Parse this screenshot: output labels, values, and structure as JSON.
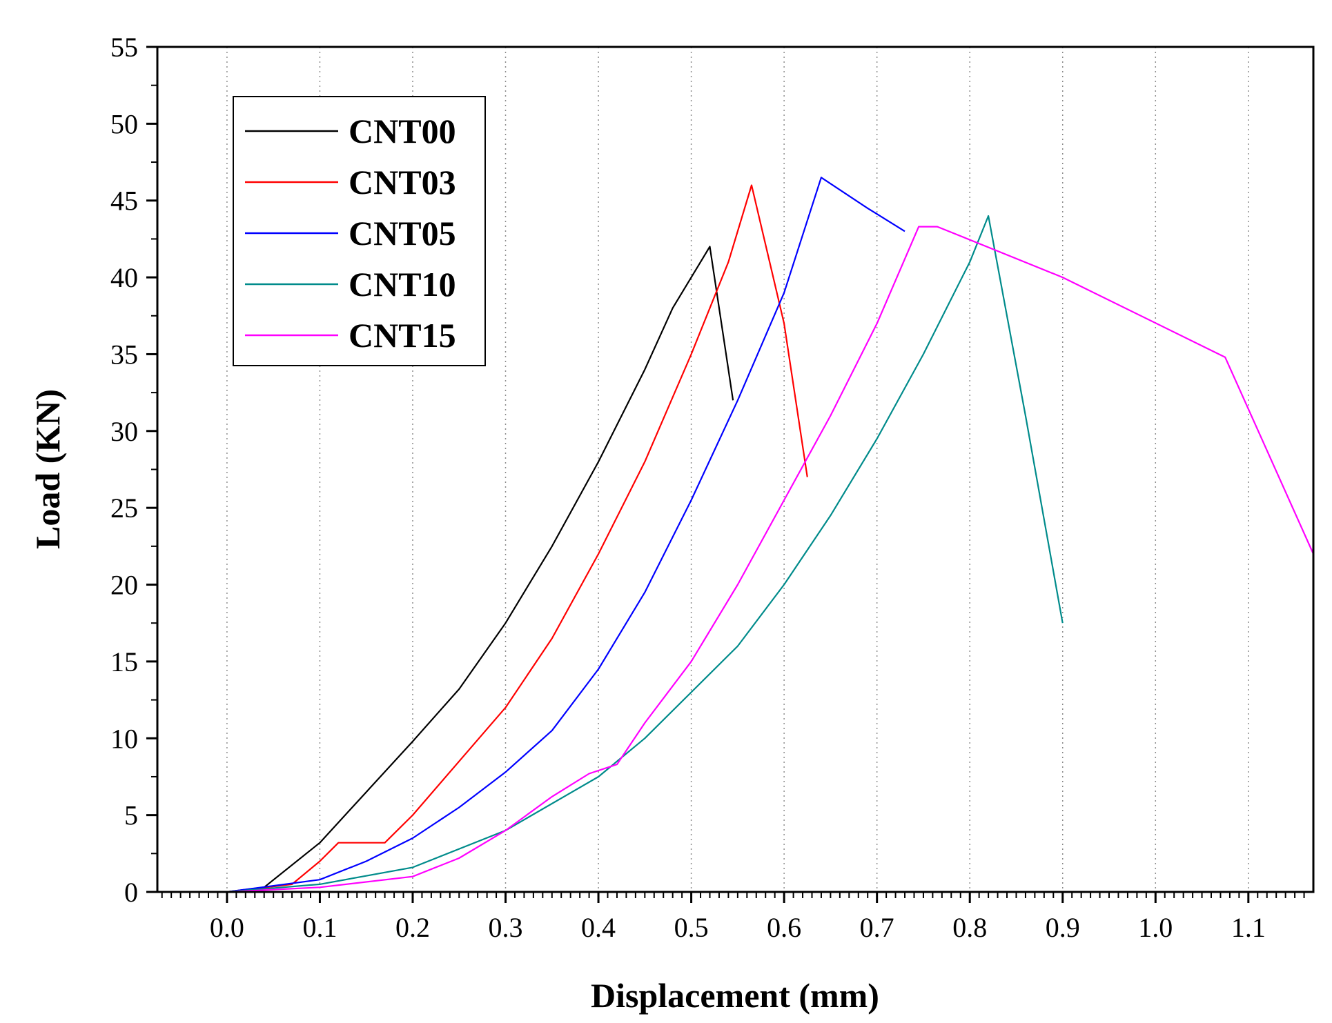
{
  "chart_data": {
    "type": "line",
    "title": "",
    "xlabel": "Displacement (mm)",
    "ylabel": "Load (KN)",
    "xlim": [
      -0.075,
      1.17
    ],
    "ylim": [
      0,
      55
    ],
    "xticks": [
      0.0,
      0.1,
      0.2,
      0.3,
      0.4,
      0.5,
      0.6,
      0.7,
      0.8,
      0.9,
      1.0,
      1.1
    ],
    "xtick_labels": [
      "0.0",
      "0.1",
      "0.2",
      "0.3",
      "0.4",
      "0.5",
      "0.6",
      "0.7",
      "0.8",
      "0.9",
      "1.0",
      "1.1"
    ],
    "yticks": [
      0,
      5,
      10,
      15,
      20,
      25,
      30,
      35,
      40,
      45,
      50,
      55
    ],
    "ytick_labels": [
      "0",
      "5",
      "10",
      "15",
      "20",
      "25",
      "30",
      "35",
      "40",
      "45",
      "50",
      "55"
    ],
    "grid": "vertical-dotted",
    "legend_position": "top-left",
    "series": [
      {
        "name": "CNT00",
        "color": "#000000",
        "points": [
          [
            0.0,
            0.0
          ],
          [
            0.04,
            0.3
          ],
          [
            0.1,
            3.2
          ],
          [
            0.15,
            6.5
          ],
          [
            0.2,
            9.8
          ],
          [
            0.25,
            13.2
          ],
          [
            0.3,
            17.5
          ],
          [
            0.35,
            22.5
          ],
          [
            0.4,
            28.0
          ],
          [
            0.45,
            34.0
          ],
          [
            0.48,
            38.0
          ],
          [
            0.5,
            40.0
          ],
          [
            0.52,
            42.0
          ],
          [
            0.535,
            36.0
          ],
          [
            0.545,
            32.0
          ]
        ]
      },
      {
        "name": "CNT03",
        "color": "#ff0000",
        "points": [
          [
            0.0,
            0.0
          ],
          [
            0.07,
            0.5
          ],
          [
            0.1,
            2.0
          ],
          [
            0.12,
            3.2
          ],
          [
            0.17,
            3.2
          ],
          [
            0.2,
            5.0
          ],
          [
            0.25,
            8.5
          ],
          [
            0.3,
            12.0
          ],
          [
            0.35,
            16.5
          ],
          [
            0.4,
            22.0
          ],
          [
            0.45,
            28.0
          ],
          [
            0.5,
            35.0
          ],
          [
            0.54,
            41.0
          ],
          [
            0.565,
            46.0
          ],
          [
            0.6,
            37.0
          ],
          [
            0.625,
            27.0
          ]
        ]
      },
      {
        "name": "CNT05",
        "color": "#0000ff",
        "points": [
          [
            0.0,
            0.0
          ],
          [
            0.1,
            0.8
          ],
          [
            0.15,
            2.0
          ],
          [
            0.2,
            3.5
          ],
          [
            0.25,
            5.5
          ],
          [
            0.3,
            7.8
          ],
          [
            0.35,
            10.5
          ],
          [
            0.4,
            14.5
          ],
          [
            0.45,
            19.5
          ],
          [
            0.5,
            25.5
          ],
          [
            0.55,
            32.0
          ],
          [
            0.6,
            39.0
          ],
          [
            0.64,
            46.5
          ],
          [
            0.69,
            44.5
          ],
          [
            0.73,
            43.0
          ]
        ]
      },
      {
        "name": "CNT10",
        "color": "#008b8b",
        "points": [
          [
            0.0,
            0.0
          ],
          [
            0.1,
            0.5
          ],
          [
            0.2,
            1.6
          ],
          [
            0.3,
            4.0
          ],
          [
            0.4,
            7.5
          ],
          [
            0.45,
            10.0
          ],
          [
            0.5,
            13.0
          ],
          [
            0.55,
            16.0
          ],
          [
            0.6,
            20.0
          ],
          [
            0.65,
            24.5
          ],
          [
            0.7,
            29.5
          ],
          [
            0.75,
            35.0
          ],
          [
            0.8,
            41.0
          ],
          [
            0.82,
            44.0
          ],
          [
            0.86,
            31.0
          ],
          [
            0.9,
            17.5
          ]
        ]
      },
      {
        "name": "CNT15",
        "color": "#ff00ff",
        "points": [
          [
            0.0,
            0.0
          ],
          [
            0.1,
            0.3
          ],
          [
            0.2,
            1.0
          ],
          [
            0.25,
            2.2
          ],
          [
            0.3,
            4.0
          ],
          [
            0.35,
            6.2
          ],
          [
            0.39,
            7.7
          ],
          [
            0.42,
            8.3
          ],
          [
            0.45,
            11.0
          ],
          [
            0.5,
            15.0
          ],
          [
            0.55,
            20.0
          ],
          [
            0.6,
            25.5
          ],
          [
            0.65,
            31.0
          ],
          [
            0.7,
            37.0
          ],
          [
            0.745,
            43.3
          ],
          [
            0.765,
            43.3
          ],
          [
            0.9,
            40.0
          ],
          [
            1.075,
            34.8
          ],
          [
            1.17,
            22.0
          ]
        ]
      }
    ]
  }
}
